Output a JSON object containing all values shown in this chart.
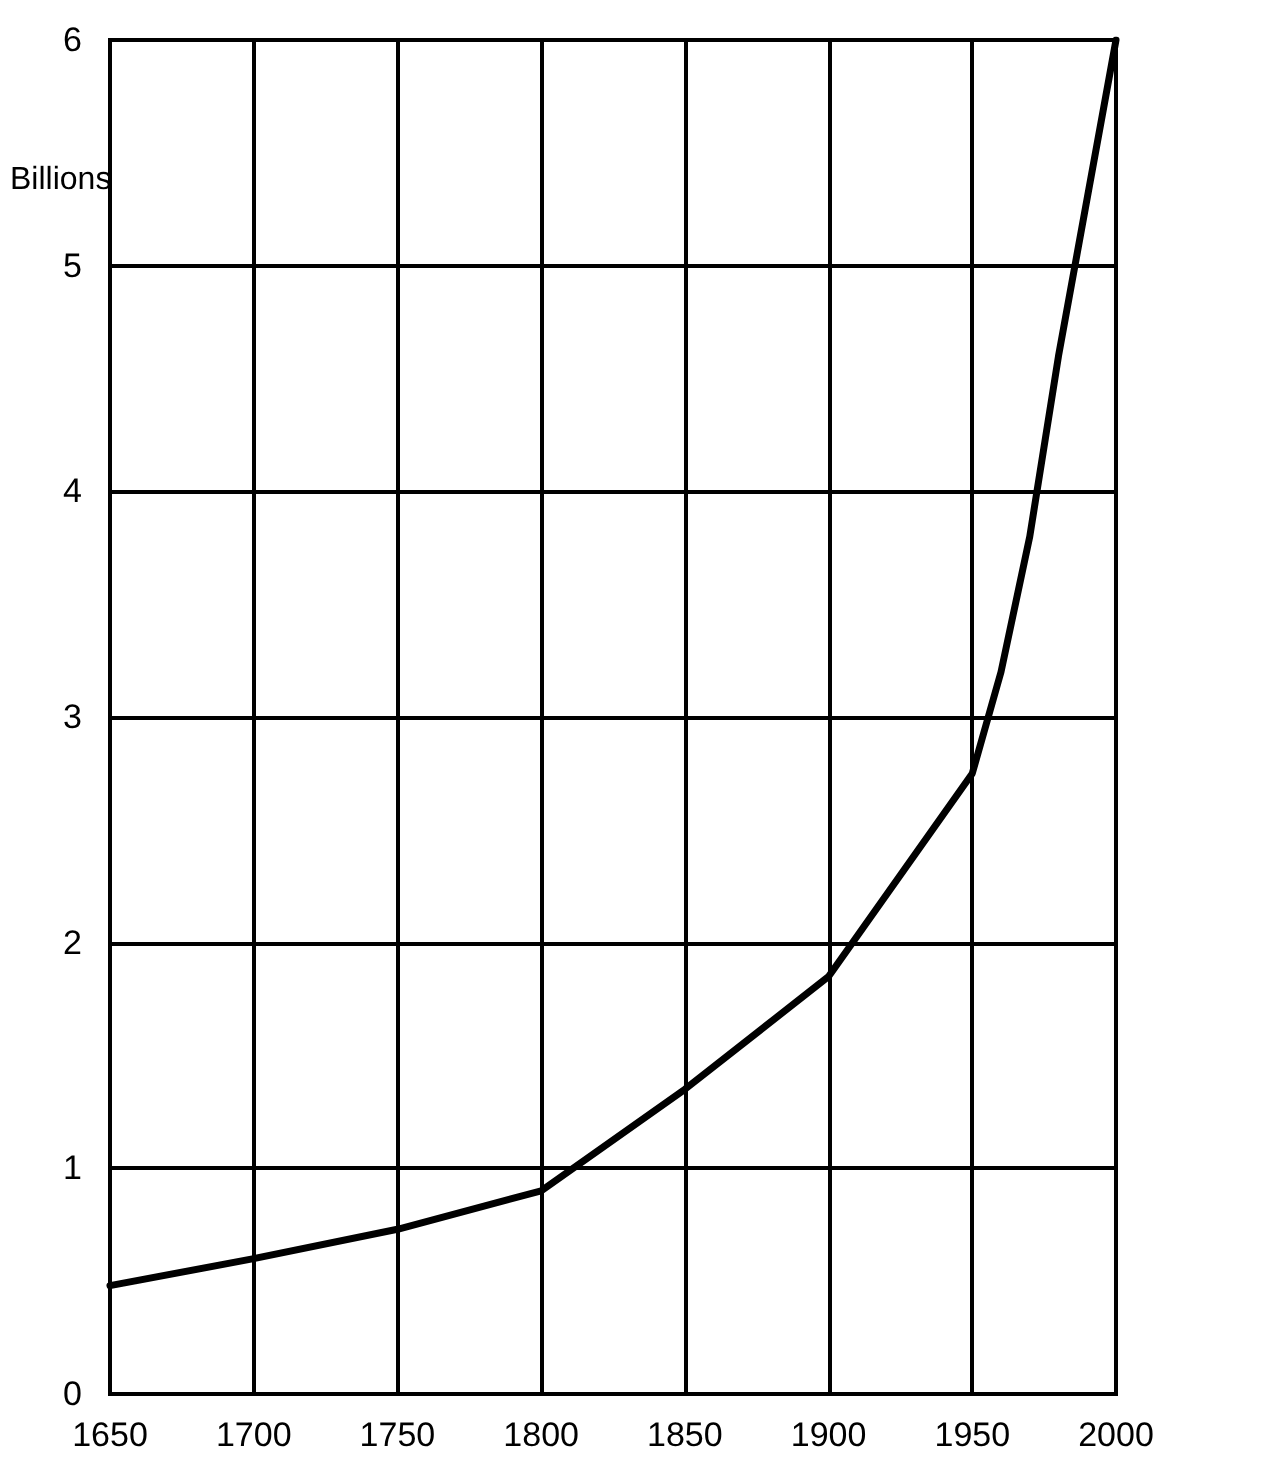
{
  "chart_data": {
    "type": "line",
    "ylabel": "Billions",
    "x": [
      1650,
      1700,
      1750,
      1800,
      1850,
      1900,
      1950,
      1960,
      1970,
      1980,
      1990,
      2000
    ],
    "series": [
      {
        "color": "#000000",
        "values": [
          0.48,
          0.6,
          0.73,
          0.9,
          1.35,
          1.85,
          2.75,
          3.2,
          3.8,
          4.6,
          5.3,
          6.0
        ]
      }
    ],
    "xlim": [
      1650,
      2000
    ],
    "xticks": [
      1650,
      1700,
      1750,
      1800,
      1850,
      1900,
      1950,
      2000
    ],
    "ylim": [
      0,
      6
    ],
    "yticks": [
      0,
      1,
      2,
      3,
      4,
      5,
      6
    ],
    "grid": true,
    "marker": "none",
    "line_style": "solid"
  }
}
